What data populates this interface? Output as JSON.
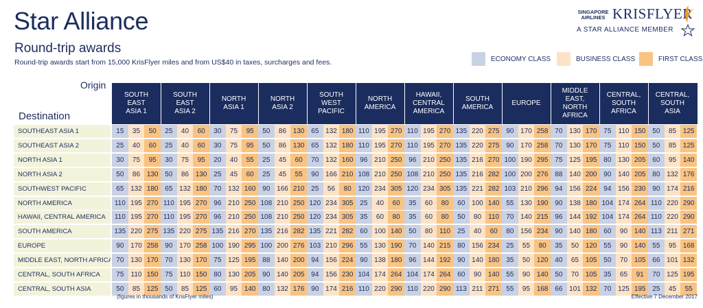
{
  "header": {
    "title": "Star Alliance",
    "subtitle": "Round-trip awards",
    "intro": "Round-trip awards start from 15,000 KrisFlyer miles and from US$40 in taxes, surcharges and fees."
  },
  "brand": {
    "airline_line1": "SINGAPORE",
    "airline_line2": "AIRLINES",
    "program": "KRISFLYER",
    "membership": "A STAR ALLIANCE MEMBER",
    "icons": [
      "krisflyer-bird-icon",
      "star-alliance-icon"
    ]
  },
  "legend": [
    {
      "label": "ECONOMY CLASS",
      "color": "#c9d1e4"
    },
    {
      "label": "BUSINESS CLASS",
      "color": "#fde3c6"
    },
    {
      "label": "FIRST CLASS",
      "color": "#f9c382"
    }
  ],
  "colors": {
    "navy": "#1b2c5e",
    "economy": "#c9d1e4",
    "business": "#fde3c6",
    "first": "#f9c382",
    "row_label_bg": "#f3f3dc"
  },
  "table": {
    "origin_label": "Origin",
    "destination_label": "Destination",
    "origins": [
      "SOUTH\nEAST\nASIA 1",
      "SOUTH\nEAST\nASIA 2",
      "NORTH\nASIA 1",
      "NORTH\nASIA 2",
      "SOUTH\nWEST\nPACIFIC",
      "NORTH\nAMERICA",
      "HAWAII,\nCENTRAL\nAMERICA",
      "SOUTH\nAMERICA",
      "EUROPE",
      "MIDDLE\nEAST,\nNORTH\nAFRICA",
      "CENTRAL,\nSOUTH\nAFRICA",
      "CENTRAL,\nSOUTH\nASIA"
    ],
    "rows": [
      {
        "destination": "SOUTHEAST ASIA 1",
        "values": [
          [
            15,
            35,
            50
          ],
          [
            25,
            40,
            60
          ],
          [
            30,
            75,
            95
          ],
          [
            50,
            86,
            130
          ],
          [
            65,
            132,
            180
          ],
          [
            110,
            195,
            270
          ],
          [
            110,
            195,
            270
          ],
          [
            135,
            220,
            275
          ],
          [
            90,
            170,
            258
          ],
          [
            70,
            130,
            170
          ],
          [
            75,
            110,
            150
          ],
          [
            50,
            85,
            125
          ]
        ]
      },
      {
        "destination": "SOUTHEAST ASIA 2",
        "values": [
          [
            25,
            40,
            60
          ],
          [
            25,
            40,
            60
          ],
          [
            30,
            75,
            95
          ],
          [
            50,
            86,
            130
          ],
          [
            65,
            132,
            180
          ],
          [
            110,
            195,
            270
          ],
          [
            110,
            195,
            270
          ],
          [
            135,
            220,
            275
          ],
          [
            90,
            170,
            258
          ],
          [
            70,
            130,
            170
          ],
          [
            75,
            110,
            150
          ],
          [
            50,
            85,
            125
          ]
        ]
      },
      {
        "destination": "NORTH ASIA 1",
        "values": [
          [
            30,
            75,
            95
          ],
          [
            30,
            75,
            95
          ],
          [
            20,
            40,
            55
          ],
          [
            25,
            45,
            60
          ],
          [
            70,
            132,
            160
          ],
          [
            96,
            210,
            250
          ],
          [
            96,
            210,
            250
          ],
          [
            135,
            216,
            270
          ],
          [
            100,
            190,
            295
          ],
          [
            75,
            125,
            195
          ],
          [
            80,
            130,
            205
          ],
          [
            60,
            95,
            140
          ]
        ]
      },
      {
        "destination": "NORTH ASIA 2",
        "values": [
          [
            50,
            86,
            130
          ],
          [
            50,
            86,
            130
          ],
          [
            25,
            45,
            60
          ],
          [
            25,
            45,
            55
          ],
          [
            90,
            166,
            210
          ],
          [
            108,
            210,
            250
          ],
          [
            108,
            210,
            250
          ],
          [
            135,
            216,
            282
          ],
          [
            100,
            200,
            276
          ],
          [
            88,
            140,
            200
          ],
          [
            90,
            140,
            205
          ],
          [
            80,
            132,
            176
          ]
        ]
      },
      {
        "destination": "SOUTHWEST PACIFIC",
        "values": [
          [
            65,
            132,
            180
          ],
          [
            65,
            132,
            180
          ],
          [
            70,
            132,
            160
          ],
          [
            90,
            166,
            210
          ],
          [
            25,
            56,
            80
          ],
          [
            120,
            234,
            305
          ],
          [
            120,
            234,
            305
          ],
          [
            135,
            221,
            282
          ],
          [
            103,
            210,
            296
          ],
          [
            94,
            156,
            224
          ],
          [
            94,
            156,
            230
          ],
          [
            90,
            174,
            216
          ]
        ]
      },
      {
        "destination": "NORTH AMERICA",
        "values": [
          [
            110,
            195,
            270
          ],
          [
            110,
            195,
            270
          ],
          [
            96,
            210,
            250
          ],
          [
            108,
            210,
            250
          ],
          [
            120,
            234,
            305
          ],
          [
            25,
            40,
            60
          ],
          [
            35,
            60,
            80
          ],
          [
            60,
            100,
            140
          ],
          [
            55,
            130,
            190
          ],
          [
            90,
            138,
            180
          ],
          [
            104,
            174,
            264
          ],
          [
            110,
            220,
            290
          ]
        ]
      },
      {
        "destination": "HAWAII, CENTRAL AMERICA",
        "values": [
          [
            110,
            195,
            270
          ],
          [
            110,
            195,
            270
          ],
          [
            96,
            210,
            250
          ],
          [
            108,
            210,
            250
          ],
          [
            120,
            234,
            305
          ],
          [
            35,
            60,
            80
          ],
          [
            35,
            60,
            80
          ],
          [
            50,
            80,
            110
          ],
          [
            70,
            140,
            215
          ],
          [
            96,
            144,
            192
          ],
          [
            104,
            174,
            264
          ],
          [
            110,
            220,
            290
          ]
        ]
      },
      {
        "destination": "SOUTH AMERICA",
        "values": [
          [
            135,
            220,
            275
          ],
          [
            135,
            220,
            275
          ],
          [
            135,
            216,
            270
          ],
          [
            135,
            216,
            282
          ],
          [
            135,
            221,
            282
          ],
          [
            60,
            100,
            140
          ],
          [
            50,
            80,
            110
          ],
          [
            25,
            40,
            60
          ],
          [
            80,
            156,
            234
          ],
          [
            90,
            140,
            180
          ],
          [
            60,
            90,
            140
          ],
          [
            113,
            211,
            271
          ]
        ]
      },
      {
        "destination": "EUROPE",
        "values": [
          [
            90,
            170,
            258
          ],
          [
            90,
            170,
            258
          ],
          [
            100,
            190,
            295
          ],
          [
            100,
            200,
            276
          ],
          [
            103,
            210,
            296
          ],
          [
            55,
            130,
            190
          ],
          [
            70,
            140,
            215
          ],
          [
            80,
            156,
            234
          ],
          [
            25,
            55,
            80
          ],
          [
            35,
            50,
            120
          ],
          [
            55,
            90,
            140
          ],
          [
            55,
            95,
            168
          ]
        ]
      },
      {
        "destination": "MIDDLE EAST, NORTH AFRICA",
        "values": [
          [
            70,
            130,
            170
          ],
          [
            70,
            130,
            170
          ],
          [
            75,
            125,
            195
          ],
          [
            88,
            140,
            200
          ],
          [
            94,
            156,
            224
          ],
          [
            90,
            138,
            180
          ],
          [
            96,
            144,
            192
          ],
          [
            90,
            140,
            180
          ],
          [
            35,
            50,
            120
          ],
          [
            40,
            65,
            105
          ],
          [
            50,
            70,
            105
          ],
          [
            66,
            101,
            132
          ]
        ]
      },
      {
        "destination": "CENTRAL, SOUTH AFRICA",
        "values": [
          [
            75,
            110,
            150
          ],
          [
            75,
            110,
            150
          ],
          [
            80,
            130,
            205
          ],
          [
            90,
            140,
            205
          ],
          [
            94,
            156,
            230
          ],
          [
            104,
            174,
            264
          ],
          [
            104,
            174,
            264
          ],
          [
            60,
            90,
            140
          ],
          [
            55,
            90,
            140
          ],
          [
            50,
            70,
            105
          ],
          [
            35,
            65,
            91
          ],
          [
            70,
            125,
            195
          ]
        ]
      },
      {
        "destination": "CENTRAL, SOUTH ASIA",
        "values": [
          [
            50,
            85,
            125
          ],
          [
            50,
            85,
            125
          ],
          [
            60,
            95,
            140
          ],
          [
            80,
            132,
            176
          ],
          [
            90,
            174,
            216
          ],
          [
            110,
            220,
            290
          ],
          [
            110,
            220,
            290
          ],
          [
            113,
            211,
            271
          ],
          [
            55,
            95,
            168
          ],
          [
            66,
            101,
            132
          ],
          [
            70,
            125,
            195
          ],
          [
            25,
            45,
            55
          ]
        ]
      }
    ]
  },
  "footer": {
    "note": "(figures in thousands of KrisFlyer miles)",
    "effective": "Effective 7 December 2017"
  }
}
